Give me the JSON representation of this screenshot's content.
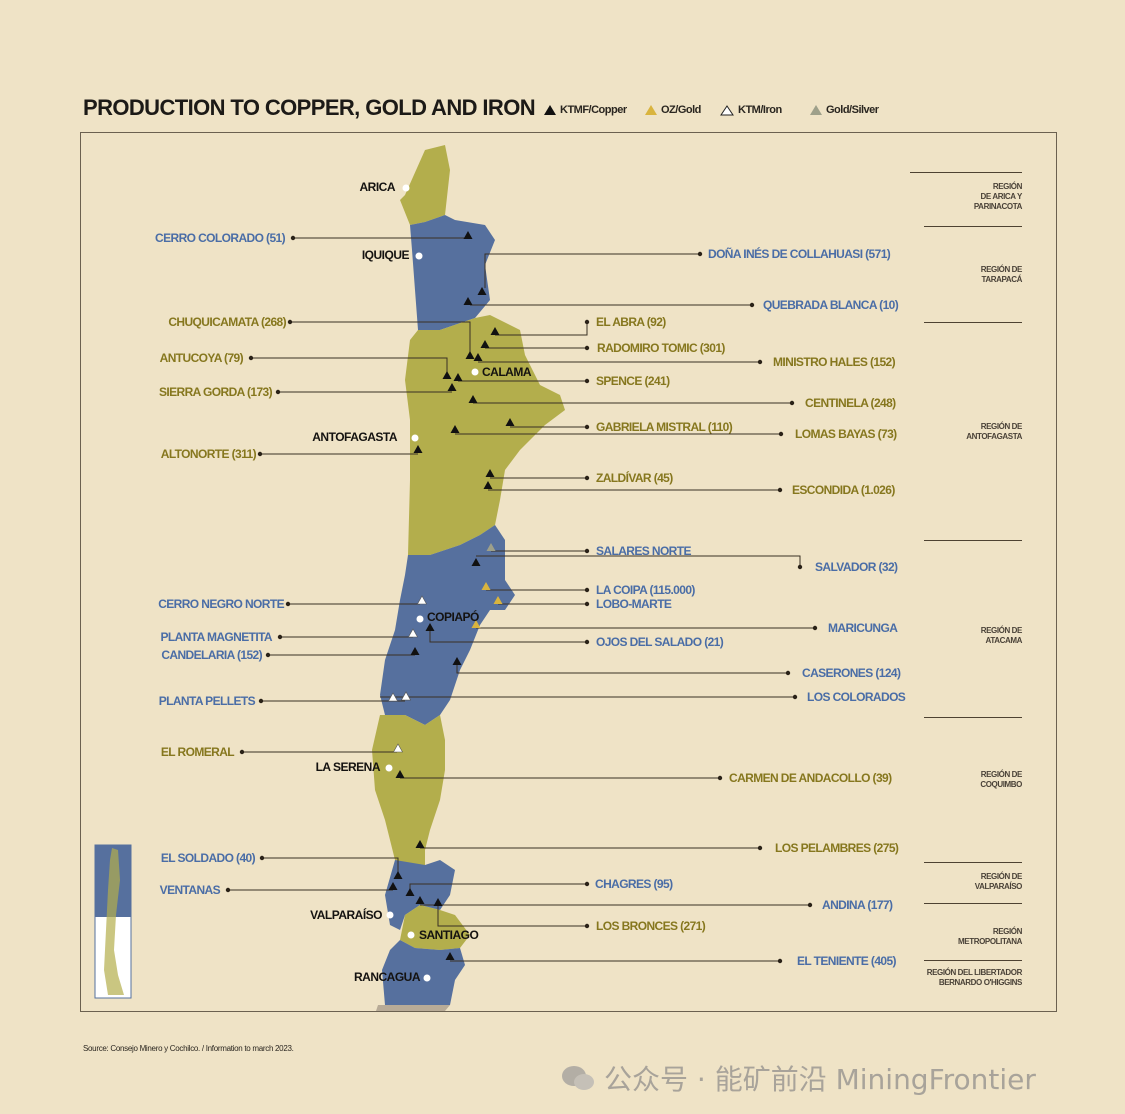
{
  "title": "PRODUCTION TO COPPER, GOLD AND IRON",
  "legend": [
    {
      "label": "KTMF/Copper",
      "icon": "triangle-black",
      "color": "#111111"
    },
    {
      "label": "OZ/Gold",
      "icon": "triangle-gold",
      "color": "#d9b43e"
    },
    {
      "label": "KTM/Iron",
      "icon": "triangle-white-outline",
      "color": "#ffffff"
    },
    {
      "label": "Gold/Silver",
      "icon": "triangle-grey",
      "color": "#9ea08a"
    }
  ],
  "colors": {
    "background": "#efe3c6",
    "region_gold": "#b3ae4c",
    "region_blue": "#56709e",
    "label_gold": "#86771e",
    "label_blue": "#4a6da6"
  },
  "cities": [
    "ARICA",
    "IQUIQUE",
    "CALAMA",
    "ANTOFAGASTA",
    "COPIAPÓ",
    "LA SERENA",
    "VALPARAÍSO",
    "SANTIAGO",
    "RANCAGUA"
  ],
  "regions": [
    "REGIÓN\nDE ARICA Y\nPARINACOTA",
    "REGIÓN DE\nTARAPACÁ",
    "REGIÓN DE\nANTOFAGASTA",
    "REGIÓN DE\nATACAMA",
    "REGIÓN DE\nCOQUIMBO",
    "REGIÓN DE\nVALPARAÍSO",
    "REGIÓN\nMETROPOLITANA",
    "REGIÓN DEL LIBERTADOR\nBERNARDO O'HIGGINS"
  ],
  "mines": [
    {
      "label": "CERRO COLORADO (51)",
      "type": "copper",
      "color": "blue"
    },
    {
      "label": "CHUQUICAMATA (268)",
      "type": "copper",
      "color": "gold"
    },
    {
      "label": "ANTUCOYA (79)",
      "type": "copper",
      "color": "gold"
    },
    {
      "label": "SIERRA GORDA (173)",
      "type": "copper",
      "color": "gold"
    },
    {
      "label": "ALTONORTE (311)",
      "type": "copper",
      "color": "gold"
    },
    {
      "label": "CERRO NEGRO NORTE",
      "type": "iron",
      "color": "blue"
    },
    {
      "label": "PLANTA MAGNETITA",
      "type": "iron",
      "color": "blue"
    },
    {
      "label": "CANDELARIA (152)",
      "type": "copper",
      "color": "blue"
    },
    {
      "label": "PLANTA PELLETS",
      "type": "iron",
      "color": "blue"
    },
    {
      "label": "EL ROMERAL",
      "type": "iron",
      "color": "gold"
    },
    {
      "label": "EL SOLDADO (40)",
      "type": "copper",
      "color": "blue"
    },
    {
      "label": "VENTANAS",
      "type": "copper",
      "color": "blue"
    },
    {
      "label": "DOÑA INÉS DE COLLAHUASI (571)",
      "type": "copper",
      "color": "blue"
    },
    {
      "label": "QUEBRADA BLANCA (10)",
      "type": "copper",
      "color": "blue"
    },
    {
      "label": "EL ABRA (92)",
      "type": "copper",
      "color": "gold"
    },
    {
      "label": "RADOMIRO TOMIC (301)",
      "type": "copper",
      "color": "gold"
    },
    {
      "label": "MINISTRO HALES (152)",
      "type": "copper",
      "color": "gold"
    },
    {
      "label": "SPENCE (241)",
      "type": "copper",
      "color": "gold"
    },
    {
      "label": "CENTINELA (248)",
      "type": "copper",
      "color": "gold"
    },
    {
      "label": "GABRIELA MISTRAL (110)",
      "type": "copper",
      "color": "gold"
    },
    {
      "label": "LOMAS BAYAS (73)",
      "type": "copper",
      "color": "gold"
    },
    {
      "label": "ZALDÍVAR (45)",
      "type": "copper",
      "color": "gold"
    },
    {
      "label": "ESCONDIDA (1.026)",
      "type": "copper",
      "color": "gold"
    },
    {
      "label": "SALARES NORTE",
      "type": "goldsilver",
      "color": "blue"
    },
    {
      "label": "SALVADOR (32)",
      "type": "copper",
      "color": "blue"
    },
    {
      "label": "LA COIPA (115.000)",
      "type": "gold",
      "color": "blue"
    },
    {
      "label": "LOBO-MARTE",
      "type": "gold",
      "color": "blue"
    },
    {
      "label": "MARICUNGA",
      "type": "gold",
      "color": "blue"
    },
    {
      "label": "OJOS DEL SALADO (21)",
      "type": "copper",
      "color": "blue"
    },
    {
      "label": "CASERONES (124)",
      "type": "copper",
      "color": "blue"
    },
    {
      "label": "LOS COLORADOS",
      "type": "iron",
      "color": "blue"
    },
    {
      "label": "CARMEN DE ANDACOLLO (39)",
      "type": "copper",
      "color": "gold"
    },
    {
      "label": "LOS PELAMBRES (275)",
      "type": "copper",
      "color": "gold"
    },
    {
      "label": "CHAGRES (95)",
      "type": "copper",
      "color": "blue"
    },
    {
      "label": "ANDINA (177)",
      "type": "copper",
      "color": "blue"
    },
    {
      "label": "LOS BRONCES (271)",
      "type": "copper",
      "color": "gold"
    },
    {
      "label": "EL TENIENTE (405)",
      "type": "copper",
      "color": "blue"
    }
  ],
  "source": "Source: Consejo Minero y Cochilco. / Information to march 2023.",
  "watermark": "公众号 · 能矿前沿 MiningFrontier"
}
